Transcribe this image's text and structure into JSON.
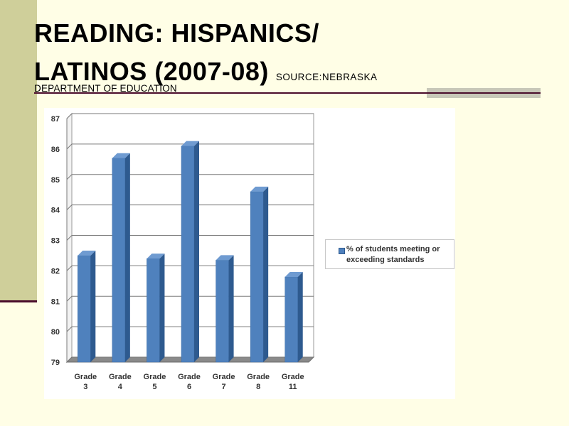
{
  "slide": {
    "title_line1": "READING: HISPANICS/",
    "title_line2": "LATINOS (2007-08)",
    "source": "SOURCE:NEBRASKA",
    "dept": "DEPARTMENT OF EDUCATION"
  },
  "colors": {
    "background": "#fffee6",
    "bar": "#4f81bd",
    "bar_side": "#2e5a8f",
    "bar_top": "#6f9bd1",
    "accent": "#4a0c2b"
  },
  "chart_data": {
    "type": "bar",
    "categories": [
      "Grade 3",
      "Grade 4",
      "Grade 5",
      "Grade 6",
      "Grade 7",
      "Grade 8",
      "Grade 11"
    ],
    "series": [
      {
        "name": "% of students meeting or exceeding standards",
        "values": [
          82.5,
          85.7,
          82.4,
          86.1,
          82.35,
          84.6,
          81.8
        ]
      }
    ],
    "ylim": [
      79,
      87
    ],
    "yticks": [
      "79",
      "80",
      "81",
      "82",
      "83",
      "84",
      "85",
      "86",
      "87"
    ],
    "grid": true,
    "legend": "right",
    "style": "3d-column",
    "title": "",
    "xlabel": "",
    "ylabel": ""
  }
}
